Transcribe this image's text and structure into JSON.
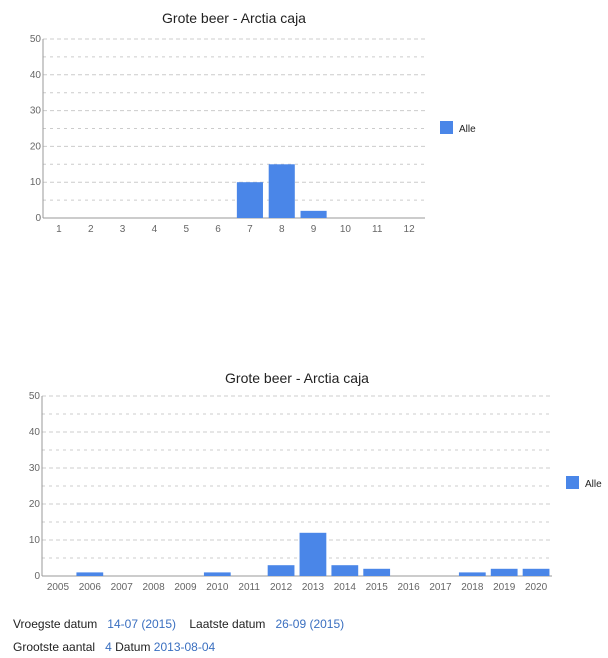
{
  "colors": {
    "bar": "#4a86e8",
    "grid": "#cccccc",
    "axis": "#999999"
  },
  "chart_data": [
    {
      "type": "bar",
      "title": "Grote beer - Arctia caja",
      "categories": [
        "1",
        "2",
        "3",
        "4",
        "5",
        "6",
        "7",
        "8",
        "9",
        "10",
        "11",
        "12"
      ],
      "series": [
        {
          "name": "Alle",
          "values": [
            0,
            0,
            0,
            0,
            0,
            0,
            10,
            15,
            2,
            0,
            0,
            0
          ]
        }
      ],
      "ylim": [
        0,
        50
      ],
      "yticks": [
        0,
        10,
        20,
        30,
        40,
        50
      ],
      "grid": true,
      "legend": "right"
    },
    {
      "type": "bar",
      "title": "Grote beer - Arctia caja",
      "categories": [
        "2005",
        "2006",
        "2007",
        "2008",
        "2009",
        "2010",
        "2011",
        "2012",
        "2013",
        "2014",
        "2015",
        "2016",
        "2017",
        "2018",
        "2019",
        "2020"
      ],
      "series": [
        {
          "name": "Alle",
          "values": [
            0,
            1,
            0,
            0,
            0,
            1,
            0,
            3,
            12,
            3,
            2,
            0,
            0,
            1,
            2,
            2
          ]
        }
      ],
      "ylim": [
        0,
        50
      ],
      "yticks": [
        0,
        10,
        20,
        30,
        40,
        50
      ],
      "grid": true,
      "legend": "right"
    }
  ],
  "info": {
    "earliest_label": "Vroegste datum",
    "earliest_value": "14-07 (2015)",
    "latest_label": "Laatste datum",
    "latest_value": "26-09 (2015)",
    "largest_label": "Grootste aantal",
    "largest_value": "4",
    "date_label": "Datum",
    "date_value": "2013-08-04"
  }
}
